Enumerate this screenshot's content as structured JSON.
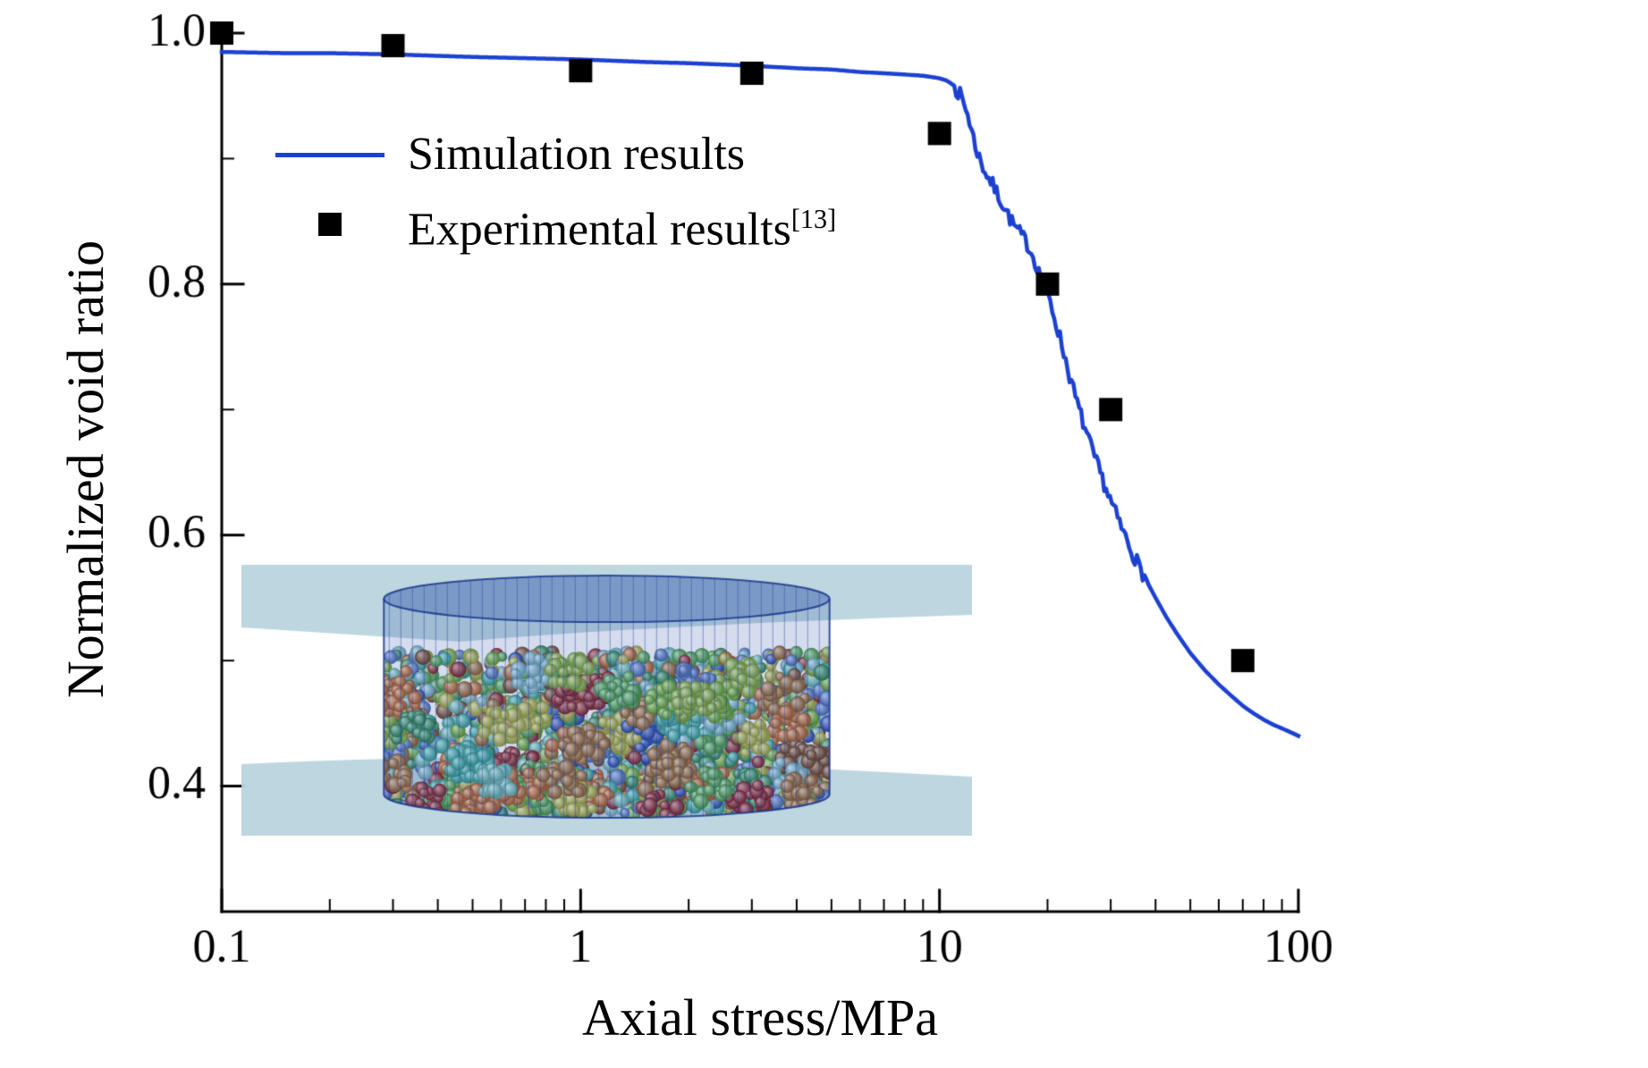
{
  "figure": {
    "background": "#ffffff"
  },
  "chart_data": {
    "type": "line+scatter",
    "title": "",
    "xlabel": "Axial stress/MPa",
    "ylabel": "Normalized void ratio",
    "x_scale": "log",
    "xlim": [
      0.1,
      100
    ],
    "ylim": [
      0.3,
      1.005
    ],
    "grid": false,
    "x_ticks": {
      "values": [
        0.1,
        1,
        10,
        100
      ],
      "labels": [
        "0.1",
        "1",
        "10",
        "100"
      ]
    },
    "y_ticks": {
      "values": [
        0.4,
        0.6,
        0.8,
        1.0
      ],
      "labels": [
        "0.4",
        "0.6",
        "0.8",
        "1.0"
      ]
    },
    "y_minor_ticks": [
      0.5,
      0.7,
      0.9
    ],
    "legend": {
      "position": "upper-left"
    },
    "series": [
      {
        "name": "Simulation results",
        "type": "line",
        "color": "#1c41d2",
        "width": 4.5,
        "noise": {
          "x_from": 11,
          "x_to": 38,
          "amplitude": 0.006
        },
        "points": [
          [
            0.1,
            0.985
          ],
          [
            0.15,
            0.984
          ],
          [
            0.2,
            0.984
          ],
          [
            0.3,
            0.983
          ],
          [
            0.5,
            0.981
          ],
          [
            0.7,
            0.98
          ],
          [
            1,
            0.979
          ],
          [
            1.5,
            0.977
          ],
          [
            2,
            0.976
          ],
          [
            3,
            0.974
          ],
          [
            4,
            0.972
          ],
          [
            5,
            0.971
          ],
          [
            6,
            0.969
          ],
          [
            7,
            0.968
          ],
          [
            8,
            0.967
          ],
          [
            9,
            0.966
          ],
          [
            10,
            0.964
          ],
          [
            10.5,
            0.962
          ],
          [
            11,
            0.958
          ],
          [
            11.5,
            0.949
          ],
          [
            12,
            0.935
          ],
          [
            12.3,
            0.922
          ],
          [
            12.6,
            0.91
          ],
          [
            13,
            0.898
          ],
          [
            13.5,
            0.888
          ],
          [
            14,
            0.88
          ],
          [
            14.5,
            0.872
          ],
          [
            15,
            0.864
          ],
          [
            15.5,
            0.856
          ],
          [
            16,
            0.848
          ],
          [
            17,
            0.838
          ],
          [
            17.5,
            0.833
          ],
          [
            18,
            0.826
          ],
          [
            18.5,
            0.818
          ],
          [
            19,
            0.808
          ],
          [
            19.5,
            0.8
          ],
          [
            20,
            0.792
          ],
          [
            21,
            0.772
          ],
          [
            22,
            0.75
          ],
          [
            23,
            0.728
          ],
          [
            24,
            0.708
          ],
          [
            25,
            0.692
          ],
          [
            26,
            0.676
          ],
          [
            27,
            0.662
          ],
          [
            28,
            0.65
          ],
          [
            30,
            0.627
          ],
          [
            32,
            0.607
          ],
          [
            34,
            0.59
          ],
          [
            36,
            0.575
          ],
          [
            38,
            0.562
          ],
          [
            40,
            0.55
          ],
          [
            43,
            0.534
          ],
          [
            46,
            0.521
          ],
          [
            50,
            0.506
          ],
          [
            55,
            0.492
          ],
          [
            60,
            0.481
          ],
          [
            65,
            0.472
          ],
          [
            70,
            0.464
          ],
          [
            75,
            0.458
          ],
          [
            80,
            0.453
          ],
          [
            85,
            0.449
          ],
          [
            90,
            0.446
          ],
          [
            95,
            0.443
          ],
          [
            100,
            0.44
          ]
        ]
      },
      {
        "name": "Experimental results",
        "sup": "[13]",
        "type": "scatter",
        "marker": "square",
        "color": "#000000",
        "size": 26,
        "points": [
          [
            0.1,
            1.0
          ],
          [
            0.3,
            0.99
          ],
          [
            1,
            0.97
          ],
          [
            3,
            0.968
          ],
          [
            10,
            0.92
          ],
          [
            20,
            0.8
          ],
          [
            30,
            0.7
          ],
          [
            70,
            0.5
          ]
        ]
      }
    ],
    "inset": {
      "description": "3D rendering of a crushable granular specimen inside a cylindrical membrane between two loading platens",
      "colors": {
        "platen": "#b7d2dc",
        "membrane_fill": "rgba(45,80,170,0.20)",
        "membrane_top_fill": "rgba(40,75,165,0.30)",
        "membrane_line": "rgba(25,55,140,0.85)",
        "particles": [
          "#9acd32",
          "#7ccd2a",
          "#55c04a",
          "#2ea05a",
          "#7fe0d0",
          "#3fc8b4",
          "#8fd8e8",
          "#b8762a",
          "#8a4a16",
          "#a31d1d",
          "#2a52cc",
          "#5b86dd",
          "#d0d23a",
          "#e07020"
        ]
      }
    }
  }
}
